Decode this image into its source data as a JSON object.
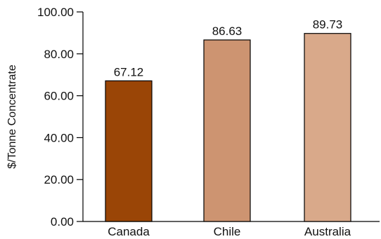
{
  "chart_data": {
    "type": "bar",
    "title": "",
    "xlabel": "",
    "ylabel": "$/Tonne Concentrate",
    "categories": [
      "Canada",
      "Chile",
      "Australia"
    ],
    "values": [
      67.12,
      86.63,
      89.73
    ],
    "value_labels": [
      "67.12",
      "86.63",
      "89.73"
    ],
    "bar_colors": [
      "#9a4506",
      "#cd9471",
      "#d9a98a"
    ],
    "bar_outline": "#000000",
    "ylim": [
      0,
      100
    ],
    "yticks": [
      0,
      20,
      40,
      60,
      80,
      100
    ],
    "ytick_labels": [
      "0.00",
      "20.00",
      "40.00",
      "60.00",
      "80.00",
      "100.00"
    ],
    "grid": false,
    "legend": "none"
  }
}
